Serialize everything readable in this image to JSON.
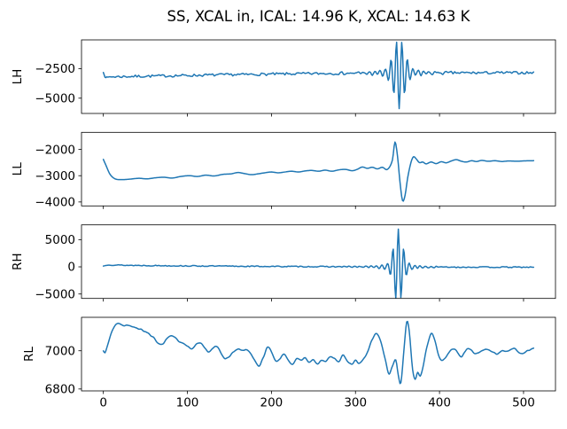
{
  "title": "SS, XCAL in, ICAL: 14.96 K, XCAL: 14.63 K",
  "line_color": "#1f77b4",
  "axis_color": "#000000",
  "chart_data": {
    "type": "line",
    "title": "SS, XCAL in, ICAL: 14.96 K, XCAL: 14.63 K",
    "grid": false,
    "legend": "none",
    "x_range": [
      0,
      512
    ],
    "xlim": [
      -26,
      538
    ],
    "xtick_labels": [
      "0",
      "100",
      "200",
      "300",
      "400",
      "500"
    ],
    "xticks": [
      0,
      100,
      200,
      300,
      400,
      500
    ],
    "subplots": [
      {
        "name": "LH",
        "ylabel": "LH",
        "ylim": [
          -6290,
          -76
        ],
        "yticks": [
          -2500,
          -5000
        ],
        "ytick_labels": [
          "−2500",
          "−5000"
        ],
        "series": {
          "keypoints": [
            [
              0,
              -2720
            ],
            [
              3,
              -3270
            ],
            [
              8,
              -3200
            ],
            [
              20,
              -3180
            ],
            [
              60,
              -3130
            ],
            [
              100,
              -3080
            ],
            [
              140,
              -3030
            ],
            [
              180,
              -2990
            ],
            [
              220,
              -2950
            ],
            [
              260,
              -2915
            ],
            [
              300,
              -2890
            ],
            [
              340,
              -2875
            ],
            [
              380,
              -2865
            ],
            [
              420,
              -2862
            ],
            [
              460,
              -2858
            ],
            [
              512,
              -2852
            ]
          ],
          "noise": {
            "amp": 110,
            "scale": 2,
            "seed": 7
          },
          "burst": {
            "center": 352,
            "period": 6.5,
            "sign": -1,
            "envelopes": [
              [
                2500,
                8.5
              ],
              [
                380,
                22
              ],
              [
                95,
                55
              ]
            ]
          }
        }
      },
      {
        "name": "LL",
        "ylabel": "LL",
        "ylim": [
          -4150,
          -1350
        ],
        "yticks": [
          -2000,
          -3000,
          -4000
        ],
        "ytick_labels": [
          "−2000",
          "−3000",
          "−4000"
        ],
        "series": {
          "keypoints": [
            [
              0,
              -2380
            ],
            [
              3,
              -2600
            ],
            [
              8,
              -2950
            ],
            [
              14,
              -3120
            ],
            [
              22,
              -3150
            ],
            [
              32,
              -3130
            ],
            [
              42,
              -3100
            ],
            [
              52,
              -3120
            ],
            [
              62,
              -3080
            ],
            [
              72,
              -3060
            ],
            [
              82,
              -3090
            ],
            [
              92,
              -3030
            ],
            [
              102,
              -3000
            ],
            [
              112,
              -3030
            ],
            [
              122,
              -2980
            ],
            [
              132,
              -3010
            ],
            [
              142,
              -2950
            ],
            [
              152,
              -2930
            ],
            [
              160,
              -2880
            ],
            [
              168,
              -2920
            ],
            [
              176,
              -2960
            ],
            [
              184,
              -2930
            ],
            [
              192,
              -2890
            ],
            [
              200,
              -2860
            ],
            [
              208,
              -2890
            ],
            [
              216,
              -2860
            ],
            [
              224,
              -2830
            ],
            [
              232,
              -2860
            ],
            [
              240,
              -2820
            ],
            [
              248,
              -2800
            ],
            [
              256,
              -2830
            ],
            [
              264,
              -2790
            ],
            [
              272,
              -2830
            ],
            [
              280,
              -2780
            ],
            [
              288,
              -2760
            ],
            [
              296,
              -2810
            ],
            [
              302,
              -2760
            ],
            [
              308,
              -2670
            ],
            [
              314,
              -2720
            ],
            [
              320,
              -2680
            ],
            [
              326,
              -2740
            ],
            [
              332,
              -2680
            ],
            [
              338,
              -2760
            ],
            [
              344,
              -2400
            ],
            [
              347,
              -1720
            ],
            [
              350,
              -2250
            ],
            [
              353,
              -3250
            ],
            [
              356,
              -3950
            ],
            [
              359,
              -3750
            ],
            [
              362,
              -3100
            ],
            [
              366,
              -2500
            ],
            [
              369,
              -2280
            ],
            [
              372,
              -2350
            ],
            [
              376,
              -2500
            ],
            [
              380,
              -2480
            ],
            [
              384,
              -2550
            ],
            [
              390,
              -2480
            ],
            [
              396,
              -2540
            ],
            [
              402,
              -2470
            ],
            [
              408,
              -2510
            ],
            [
              414,
              -2440
            ],
            [
              420,
              -2390
            ],
            [
              426,
              -2450
            ],
            [
              432,
              -2480
            ],
            [
              438,
              -2430
            ],
            [
              444,
              -2460
            ],
            [
              450,
              -2420
            ],
            [
              458,
              -2450
            ],
            [
              466,
              -2430
            ],
            [
              474,
              -2460
            ],
            [
              482,
              -2440
            ],
            [
              492,
              -2450
            ],
            [
              502,
              -2435
            ],
            [
              512,
              -2430
            ]
          ],
          "noise": {
            "amp": 0,
            "scale": 4,
            "seed": 3
          },
          "burst": null
        }
      },
      {
        "name": "RH",
        "ylabel": "RH",
        "ylim": [
          -5815,
          7715
        ],
        "yticks": [
          5000,
          0,
          -5000
        ],
        "ytick_labels": [
          "5000",
          "0",
          "−5000"
        ],
        "series": {
          "keypoints": [
            [
              0,
              130
            ],
            [
              5,
              380
            ],
            [
              12,
              330
            ],
            [
              40,
              260
            ],
            [
              80,
              200
            ],
            [
              120,
              150
            ],
            [
              160,
              110
            ],
            [
              200,
              75
            ],
            [
              240,
              45
            ],
            [
              280,
              20
            ],
            [
              320,
              0
            ],
            [
              360,
              -20
            ],
            [
              400,
              -45
            ],
            [
              450,
              -60
            ],
            [
              512,
              -75
            ]
          ],
          "noise": {
            "amp": 95,
            "scale": 2,
            "seed": 13
          },
          "burst": {
            "center": 351,
            "period": 6.5,
            "sign": 1,
            "envelopes": [
              [
                6300,
                7.2
              ],
              [
                480,
                22
              ],
              [
                110,
                55
              ]
            ]
          }
        }
      },
      {
        "name": "RL",
        "ylabel": "RL",
        "ylim": [
          6790,
          7175
        ],
        "yticks": [
          7000,
          6800
        ],
        "ytick_labels": [
          "7000",
          "6800"
        ],
        "series": {
          "keypoints": [
            [
              0,
              7000
            ],
            [
              2,
              6990
            ],
            [
              5,
              7030
            ],
            [
              10,
              7100
            ],
            [
              15,
              7135
            ],
            [
              20,
              7140
            ],
            [
              25,
              7130
            ],
            [
              30,
              7135
            ],
            [
              35,
              7125
            ],
            [
              40,
              7120
            ],
            [
              45,
              7110
            ],
            [
              50,
              7100
            ],
            [
              55,
              7085
            ],
            [
              60,
              7070
            ],
            [
              65,
              7040
            ],
            [
              70,
              7035
            ],
            [
              75,
              7060
            ],
            [
              80,
              7075
            ],
            [
              85,
              7070
            ],
            [
              90,
              7050
            ],
            [
              95,
              7040
            ],
            [
              100,
              7025
            ],
            [
              105,
              7010
            ],
            [
              110,
              7030
            ],
            [
              115,
              7040
            ],
            [
              120,
              7020
            ],
            [
              125,
              6990
            ],
            [
              130,
              7010
            ],
            [
              135,
              7025
            ],
            [
              140,
              6990
            ],
            [
              145,
              6960
            ],
            [
              150,
              6970
            ],
            [
              155,
              6995
            ],
            [
              160,
              7010
            ],
            [
              165,
              7000
            ],
            [
              170,
              7010
            ],
            [
              175,
              6990
            ],
            [
              180,
              6950
            ],
            [
              185,
              6920
            ],
            [
              190,
              6960
            ],
            [
              195,
              7015
            ],
            [
              200,
              6995
            ],
            [
              205,
              6950
            ],
            [
              210,
              6960
            ],
            [
              215,
              6980
            ],
            [
              220,
              6950
            ],
            [
              225,
              6930
            ],
            [
              230,
              6960
            ],
            [
              235,
              6950
            ],
            [
              240,
              6965
            ],
            [
              245,
              6940
            ],
            [
              250,
              6955
            ],
            [
              255,
              6930
            ],
            [
              260,
              6950
            ],
            [
              265,
              6945
            ],
            [
              270,
              6970
            ],
            [
              275,
              6960
            ],
            [
              280,
              6940
            ],
            [
              285,
              6975
            ],
            [
              290,
              6950
            ],
            [
              295,
              6930
            ],
            [
              300,
              6950
            ],
            [
              305,
              6935
            ],
            [
              310,
              6960
            ],
            [
              315,
              7000
            ],
            [
              320,
              7060
            ],
            [
              325,
              7090
            ],
            [
              330,
              7050
            ],
            [
              335,
              6960
            ],
            [
              340,
              6880
            ],
            [
              344,
              6920
            ],
            [
              348,
              6950
            ],
            [
              351,
              6870
            ],
            [
              354,
              6830
            ],
            [
              358,
              7020
            ],
            [
              361,
              7150
            ],
            [
              364,
              7100
            ],
            [
              368,
              6900
            ],
            [
              371,
              6850
            ],
            [
              374,
              6890
            ],
            [
              377,
              6870
            ],
            [
              380,
              6910
            ],
            [
              384,
              7000
            ],
            [
              388,
              7070
            ],
            [
              391,
              7090
            ],
            [
              394,
              7060
            ],
            [
              398,
              6990
            ],
            [
              402,
              6950
            ],
            [
              406,
              6960
            ],
            [
              410,
              6985
            ],
            [
              414,
              7005
            ],
            [
              418,
              7010
            ],
            [
              422,
              6990
            ],
            [
              426,
              6970
            ],
            [
              430,
              6990
            ],
            [
              434,
              7010
            ],
            [
              438,
              7000
            ],
            [
              442,
              6985
            ],
            [
              446,
              6990
            ],
            [
              450,
              7000
            ],
            [
              455,
              7010
            ],
            [
              460,
              7000
            ],
            [
              465,
              6990
            ],
            [
              470,
              6985
            ],
            [
              475,
              7000
            ],
            [
              480,
              6995
            ],
            [
              485,
              7005
            ],
            [
              490,
              7010
            ],
            [
              495,
              6990
            ],
            [
              500,
              6985
            ],
            [
              505,
              7000
            ],
            [
              510,
              7010
            ],
            [
              512,
              7012
            ]
          ],
          "noise": {
            "amp": 4,
            "scale": 3,
            "seed": 21
          },
          "burst": null
        }
      }
    ]
  }
}
